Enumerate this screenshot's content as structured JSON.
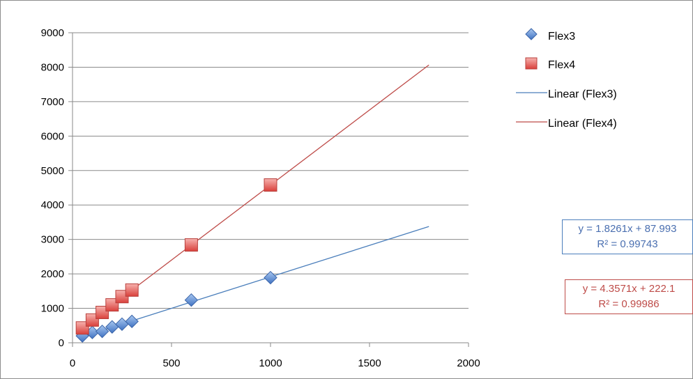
{
  "chart_data": {
    "type": "scatter",
    "title": "",
    "xlabel": "",
    "ylabel": "",
    "xlim": [
      0,
      2000
    ],
    "ylim": [
      0,
      9000
    ],
    "x_ticks": [
      "0",
      "500",
      "1000",
      "1500",
      "2000"
    ],
    "y_ticks": [
      "0",
      "1000",
      "2000",
      "3000",
      "4000",
      "5000",
      "6000",
      "7000",
      "8000",
      "9000"
    ],
    "grid": "horizontal",
    "legend_position": "right",
    "series": [
      {
        "name": "Flex3",
        "marker": "diamond",
        "color": "#4f81bd",
        "x": [
          50,
          100,
          150,
          200,
          250,
          300,
          600,
          1000
        ],
        "y": [
          200,
          300,
          330,
          460,
          540,
          620,
          1240,
          1890
        ]
      },
      {
        "name": "Flex4",
        "marker": "square",
        "color": "#e05a55",
        "x": [
          50,
          100,
          150,
          200,
          250,
          300,
          600,
          1000
        ],
        "y": [
          430,
          660,
          880,
          1100,
          1340,
          1530,
          2840,
          4580
        ]
      }
    ],
    "trendlines": [
      {
        "name": "Linear (Flex3)",
        "color": "#4a7ebb",
        "slope": 1.8261,
        "intercept": 87.993,
        "x_range": [
          50,
          1800
        ],
        "equation": "y = 1.8261x + 87.993",
        "r2": "R² = 0.99743"
      },
      {
        "name": "Linear (Flex4)",
        "color": "#be4b48",
        "slope": 4.3571,
        "intercept": 222.1,
        "x_range": [
          50,
          1800
        ],
        "equation": "y = 4.3571x + 222.1",
        "r2": "R² = 0.99986"
      }
    ]
  }
}
